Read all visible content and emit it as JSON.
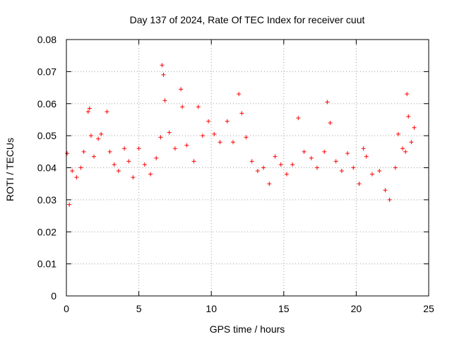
{
  "chart_data": {
    "type": "scatter",
    "title": "Day 137 of 2024, Rate Of TEC Index for receiver cuut",
    "xlabel": "GPS time / hours",
    "ylabel": "ROTI / TECUs",
    "xlim": [
      0,
      25
    ],
    "ylim": [
      0,
      0.08
    ],
    "x_ticks": [
      0,
      5,
      10,
      15,
      20,
      25
    ],
    "x_tick_labels": [
      "0",
      "5",
      "10",
      "15",
      "20",
      "25"
    ],
    "y_ticks": [
      0,
      0.01,
      0.02,
      0.03,
      0.04,
      0.05,
      0.06,
      0.07,
      0.08
    ],
    "y_tick_labels": [
      "0",
      "0.01",
      "0.02",
      "0.03",
      "0.04",
      "0.05",
      "0.06",
      "0.07",
      "0.08"
    ],
    "grid": true,
    "marker": "plus",
    "marker_color": "#ff0000",
    "series": [
      {
        "points": [
          [
            0.05,
            0.0445
          ],
          [
            0.2,
            0.0285
          ],
          [
            0.4,
            0.039
          ],
          [
            0.7,
            0.037
          ],
          [
            1.0,
            0.04
          ],
          [
            1.2,
            0.045
          ],
          [
            1.5,
            0.0575
          ],
          [
            1.6,
            0.0585
          ],
          [
            1.7,
            0.05
          ],
          [
            1.9,
            0.0435
          ],
          [
            2.2,
            0.049
          ],
          [
            2.4,
            0.0505
          ],
          [
            2.8,
            0.0575
          ],
          [
            3.0,
            0.045
          ],
          [
            3.3,
            0.041
          ],
          [
            3.6,
            0.039
          ],
          [
            4.0,
            0.046
          ],
          [
            4.3,
            0.042
          ],
          [
            4.6,
            0.037
          ],
          [
            5.0,
            0.046
          ],
          [
            5.4,
            0.041
          ],
          [
            5.8,
            0.038
          ],
          [
            6.2,
            0.043
          ],
          [
            6.5,
            0.0495
          ],
          [
            6.6,
            0.072
          ],
          [
            6.7,
            0.069
          ],
          [
            6.8,
            0.061
          ],
          [
            7.1,
            0.051
          ],
          [
            7.5,
            0.046
          ],
          [
            7.9,
            0.0645
          ],
          [
            8.0,
            0.059
          ],
          [
            8.3,
            0.047
          ],
          [
            8.8,
            0.042
          ],
          [
            9.1,
            0.059
          ],
          [
            9.4,
            0.05
          ],
          [
            9.8,
            0.0545
          ],
          [
            10.2,
            0.0505
          ],
          [
            10.6,
            0.048
          ],
          [
            11.1,
            0.0545
          ],
          [
            11.5,
            0.048
          ],
          [
            11.9,
            0.063
          ],
          [
            12.1,
            0.057
          ],
          [
            12.4,
            0.0495
          ],
          [
            12.8,
            0.042
          ],
          [
            13.2,
            0.039
          ],
          [
            13.6,
            0.04
          ],
          [
            14.0,
            0.035
          ],
          [
            14.4,
            0.0435
          ],
          [
            14.8,
            0.041
          ],
          [
            15.2,
            0.038
          ],
          [
            15.6,
            0.041
          ],
          [
            16.0,
            0.0555
          ],
          [
            16.4,
            0.045
          ],
          [
            16.9,
            0.043
          ],
          [
            17.3,
            0.04
          ],
          [
            17.8,
            0.045
          ],
          [
            18.0,
            0.0605
          ],
          [
            18.2,
            0.054
          ],
          [
            18.6,
            0.042
          ],
          [
            19.0,
            0.039
          ],
          [
            19.4,
            0.0445
          ],
          [
            19.8,
            0.04
          ],
          [
            20.2,
            0.035
          ],
          [
            20.5,
            0.046
          ],
          [
            20.7,
            0.0435
          ],
          [
            21.1,
            0.038
          ],
          [
            21.6,
            0.039
          ],
          [
            22.0,
            0.033
          ],
          [
            22.3,
            0.03
          ],
          [
            22.7,
            0.04
          ],
          [
            22.9,
            0.0505
          ],
          [
            23.2,
            0.046
          ],
          [
            23.4,
            0.045
          ],
          [
            23.5,
            0.063
          ],
          [
            23.6,
            0.056
          ],
          [
            23.8,
            0.048
          ],
          [
            24.0,
            0.0525
          ]
        ]
      }
    ]
  }
}
